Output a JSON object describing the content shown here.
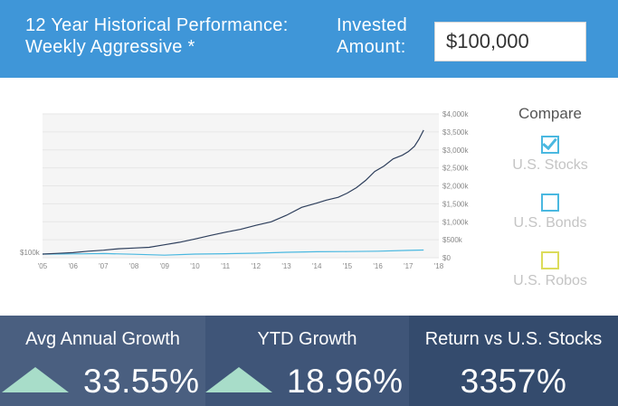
{
  "header": {
    "title_line1": "12 Year Historical Performance:",
    "title_line2": "Weekly Aggressive *",
    "invested_line1": "Invested",
    "invested_line2": "Amount:",
    "amount_value": "$100,000",
    "background": "#3f96d8"
  },
  "compare": {
    "title": "Compare",
    "items": [
      {
        "label": "U.S. Stocks",
        "checked": true,
        "color": "#4ab8e0"
      },
      {
        "label": "U.S. Bonds",
        "checked": false,
        "color": "#4ab8e0"
      },
      {
        "label": "U.S. Robos",
        "checked": false,
        "color": "#dcdc5a"
      }
    ]
  },
  "chart_data": {
    "type": "line",
    "x_ticks": [
      "'05",
      "'06",
      "'07",
      "'08",
      "'09",
      "'10",
      "'11",
      "'12",
      "'13",
      "'14",
      "'15",
      "'16",
      "'17",
      "'18"
    ],
    "y_ticks": [
      "$0",
      "$500k",
      "$1,000k",
      "$1,500k",
      "$2,000k",
      "$2,500k",
      "$3,000k",
      "$3,500k",
      "$4,000k"
    ],
    "start_label": "$100k",
    "xlim": [
      2005,
      2018
    ],
    "ylim": [
      0,
      4000
    ],
    "y_unit": "thousands USD",
    "grid": true,
    "series": [
      {
        "color": "#2e3f5c",
        "x": [
          2005,
          2005.5,
          2006,
          2006.5,
          2007,
          2007.5,
          2008,
          2008.5,
          2009,
          2009.5,
          2010,
          2010.5,
          2011,
          2011.5,
          2012,
          2012.5,
          2013,
          2013.5,
          2014,
          2014.3,
          2014.7,
          2015,
          2015.3,
          2015.6,
          2015.9,
          2016.2,
          2016.5,
          2016.8,
          2017,
          2017.2,
          2017.35,
          2017.5
        ],
        "y": [
          100,
          120,
          140,
          180,
          210,
          250,
          270,
          290,
          360,
          430,
          520,
          620,
          710,
          790,
          900,
          1000,
          1180,
          1400,
          1520,
          1600,
          1680,
          1800,
          1950,
          2150,
          2400,
          2550,
          2750,
          2850,
          2950,
          3100,
          3300,
          3550
        ]
      },
      {
        "color": "#4ab8e0",
        "x": [
          2005,
          2006,
          2007,
          2008,
          2009,
          2010,
          2011,
          2012,
          2013,
          2014,
          2015,
          2016,
          2017,
          2017.5
        ],
        "y": [
          100,
          105,
          115,
          95,
          70,
          100,
          110,
          125,
          150,
          165,
          170,
          180,
          205,
          215
        ]
      }
    ]
  },
  "stats": {
    "avg_growth": {
      "label": "Avg Annual Growth",
      "value": "33.55%"
    },
    "ytd_growth": {
      "label": "YTD Growth",
      "value": "18.96%"
    },
    "return_vs": {
      "label": "Return vs U.S. Stocks",
      "value": "3357%"
    }
  }
}
